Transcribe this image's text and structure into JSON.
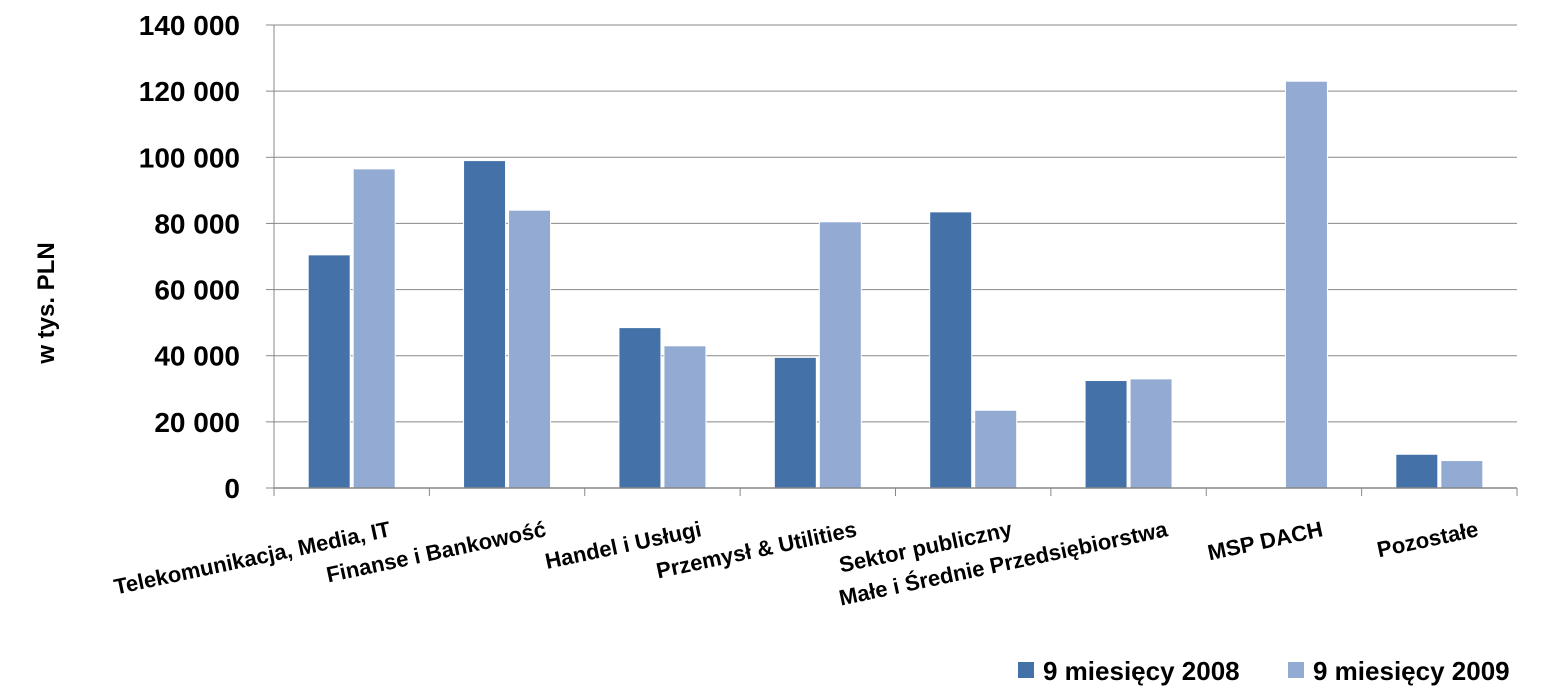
{
  "colors": {
    "series_2008": "#4472A8",
    "series_2009": "#93ABD3",
    "grid": "#888888",
    "axis": "#888888"
  },
  "chart_data": {
    "type": "bar",
    "ylabel": "w tys. PLN",
    "xlabel": "",
    "ylim": [
      0,
      140000
    ],
    "yticks": [
      0,
      20000,
      40000,
      60000,
      80000,
      100000,
      120000,
      140000
    ],
    "ytick_labels": [
      "0",
      "20 000",
      "40 000",
      "60 000",
      "80 000",
      "100 000",
      "120 000",
      "140 000"
    ],
    "grid": true,
    "legend_position": "bottom-right",
    "categories": [
      "Telekomunikacja, Media, IT",
      "Finanse i Bankowość",
      "Handel i Usługi",
      "Przemysł & Utilities",
      "Sektor publiczny",
      "Małe i Średnie Przedsiębiorstwa",
      "MSP DACH",
      "Pozostałe"
    ],
    "series": [
      {
        "name": "9 miesięcy 2008",
        "values": [
          70500,
          99000,
          48500,
          39500,
          83500,
          32500,
          0,
          10200
        ]
      },
      {
        "name": "9 miesięcy 2009",
        "values": [
          96500,
          84000,
          43000,
          80500,
          23500,
          33000,
          123000,
          8300
        ]
      }
    ]
  }
}
